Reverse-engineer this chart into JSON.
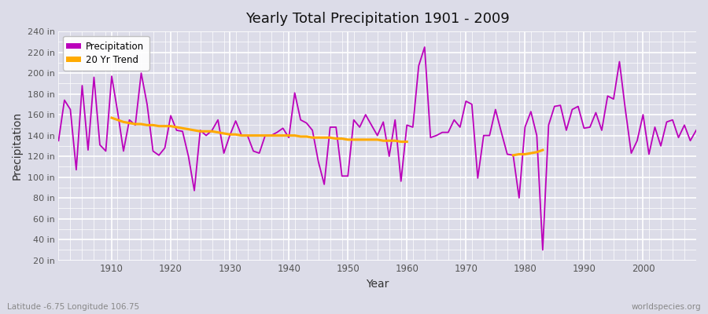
{
  "title": "Yearly Total Precipitation 1901 - 2009",
  "xlabel": "Year",
  "ylabel": "Precipitation",
  "footnote_left": "Latitude -6.75 Longitude 106.75",
  "footnote_right": "worldspecies.org",
  "legend_precip": "Precipitation",
  "legend_trend": "20 Yr Trend",
  "precip_color": "#bb00bb",
  "trend_color": "#ffaa00",
  "bg_color": "#dcdce8",
  "ylim": [
    20,
    240
  ],
  "yticks": [
    20,
    40,
    60,
    80,
    100,
    120,
    140,
    160,
    180,
    200,
    220,
    240
  ],
  "xticks": [
    1910,
    1920,
    1930,
    1940,
    1950,
    1960,
    1970,
    1980,
    1990,
    2000
  ],
  "years": [
    1901,
    1902,
    1903,
    1904,
    1905,
    1906,
    1907,
    1908,
    1909,
    1910,
    1911,
    1912,
    1913,
    1914,
    1915,
    1916,
    1917,
    1918,
    1919,
    1920,
    1921,
    1922,
    1923,
    1924,
    1925,
    1926,
    1927,
    1928,
    1929,
    1930,
    1931,
    1932,
    1933,
    1934,
    1935,
    1936,
    1937,
    1938,
    1939,
    1940,
    1941,
    1942,
    1943,
    1944,
    1945,
    1946,
    1947,
    1948,
    1949,
    1950,
    1951,
    1952,
    1953,
    1954,
    1955,
    1956,
    1957,
    1958,
    1959,
    1960,
    1961,
    1962,
    1963,
    1964,
    1965,
    1966,
    1967,
    1968,
    1969,
    1970,
    1971,
    1972,
    1973,
    1974,
    1975,
    1976,
    1977,
    1978,
    1979,
    1980,
    1981,
    1982,
    1983,
    1984,
    1985,
    1986,
    1987,
    1988,
    1989,
    1990,
    1991,
    1992,
    1993,
    1994,
    1995,
    1996,
    1997,
    1998,
    1999,
    2000,
    2001,
    2002,
    2003,
    2004,
    2005,
    2006,
    2007,
    2008,
    2009
  ],
  "precip": [
    135,
    174,
    165,
    107,
    188,
    126,
    196,
    131,
    125,
    197,
    163,
    125,
    155,
    150,
    200,
    170,
    125,
    121,
    128,
    159,
    145,
    144,
    120,
    87,
    145,
    140,
    145,
    155,
    123,
    140,
    154,
    140,
    140,
    125,
    123,
    140,
    140,
    143,
    147,
    138,
    181,
    155,
    152,
    145,
    115,
    93,
    148,
    148,
    101,
    101,
    155,
    148,
    160,
    150,
    140,
    153,
    120,
    155,
    96,
    150,
    148,
    207,
    225,
    138,
    140,
    143,
    143,
    155,
    148,
    173,
    170,
    99,
    140,
    140,
    165,
    143,
    122,
    121,
    80,
    148,
    163,
    140,
    30,
    150,
    168,
    169,
    145,
    165,
    168,
    147,
    148,
    162,
    145,
    178,
    175,
    211,
    165,
    123,
    135,
    160,
    122,
    148,
    130,
    153,
    155,
    138,
    150,
    135,
    145
  ],
  "trend_years_1": [
    1910,
    1911,
    1912,
    1913,
    1914,
    1915,
    1916,
    1917,
    1918,
    1919,
    1920,
    1921,
    1922,
    1923,
    1924,
    1925,
    1926,
    1927,
    1928,
    1929,
    1930,
    1931,
    1932,
    1933,
    1934,
    1935,
    1936,
    1937,
    1938,
    1939,
    1940,
    1941,
    1942,
    1943,
    1944,
    1945,
    1946,
    1947,
    1948,
    1949,
    1950,
    1951,
    1952,
    1953,
    1954,
    1955,
    1956,
    1957,
    1958,
    1959,
    1960
  ],
  "trend_vals_1": [
    157,
    155,
    153,
    152,
    151,
    151,
    150,
    150,
    149,
    149,
    149,
    148,
    147,
    146,
    145,
    144,
    144,
    144,
    143,
    142,
    141,
    141,
    140,
    140,
    140,
    140,
    140,
    140,
    140,
    140,
    140,
    140,
    139,
    139,
    138,
    138,
    138,
    138,
    137,
    137,
    136,
    136,
    136,
    136,
    136,
    136,
    135,
    135,
    135,
    134,
    134
  ],
  "trend_years_2": [
    1978,
    1979,
    1980,
    1981,
    1982,
    1983
  ],
  "trend_vals_2": [
    121,
    122,
    122,
    123,
    124,
    126
  ]
}
